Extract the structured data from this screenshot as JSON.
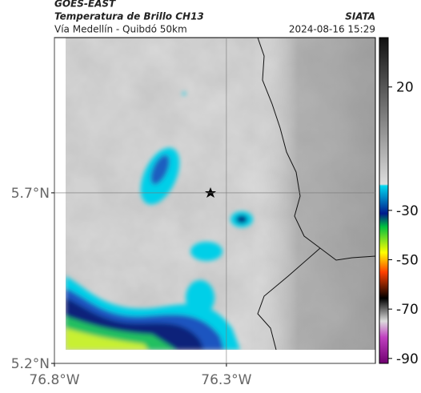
{
  "header": {
    "title": "GOES-EAST",
    "subtitle": "Temperatura de Brillo CH13",
    "location": "Vía Medellín - Quibdó 50km",
    "source": "SIATA",
    "datetime": "2024-08-16 15:29"
  },
  "map": {
    "xlim": [
      -76.8,
      -75.867
    ],
    "ylim": [
      5.2,
      6.155
    ],
    "xticks": [
      {
        "value": -76.8,
        "label": "76.8°W"
      },
      {
        "value": -76.3,
        "label": "76.3°W"
      }
    ],
    "yticks": [
      {
        "value": 5.2,
        "label": "5.2°N"
      },
      {
        "value": 5.7,
        "label": "5.7°N"
      }
    ],
    "grid": true
  },
  "colorbar": {
    "lim": [
      -92,
      40
    ],
    "ticks": [
      20,
      -30,
      -50,
      -70,
      -90
    ]
  }
}
